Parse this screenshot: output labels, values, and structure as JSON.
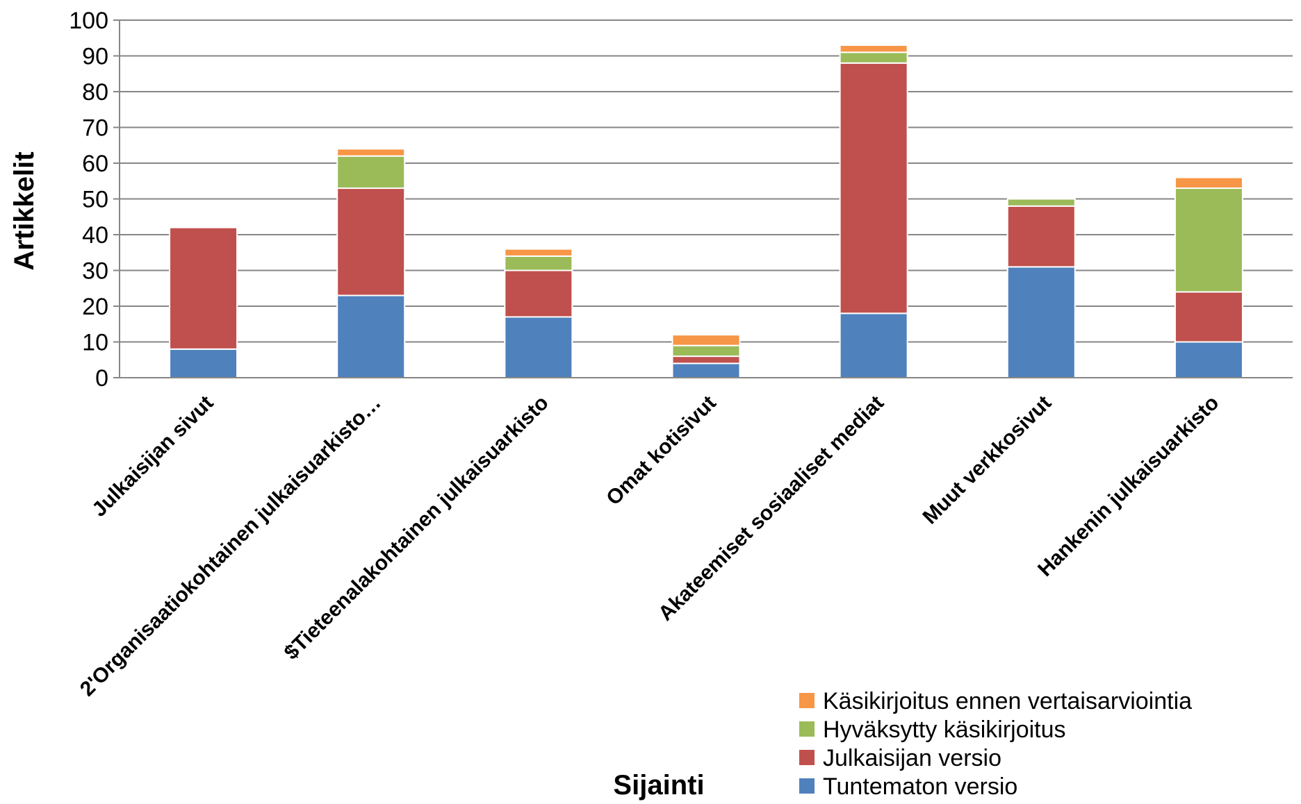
{
  "chart_data": {
    "type": "bar",
    "stacked": true,
    "categories": [
      "Julkaisijan sivut",
      "2'Organisaatiokohtainen julkaisuarkisto…",
      "$Tieteenalakohtainen julkaisuarkisto",
      "Omat kotisivut",
      "Akateemiset sosiaaliset mediat",
      "Muut verkkosivut",
      "Hankenin julkaisuarkisto"
    ],
    "series": [
      {
        "name": "Tuntematon versio",
        "color": "#4F81BD",
        "values": [
          8,
          23,
          17,
          4,
          18,
          31,
          10
        ]
      },
      {
        "name": "Julkaisijan versio",
        "color": "#C0504D",
        "values": [
          34,
          30,
          13,
          2,
          70,
          17,
          14
        ]
      },
      {
        "name": "Hyväksytty käsikirjoitus",
        "color": "#9BBB59",
        "values": [
          0,
          9,
          4,
          3,
          3,
          2,
          29
        ]
      },
      {
        "name": "Käsikirjoitus ennen vertaisarviointia",
        "color": "#F79646",
        "values": [
          0,
          2,
          2,
          3,
          2,
          0,
          3
        ]
      }
    ],
    "title": "",
    "xlabel": "Sijainti",
    "ylabel": "Artikkelit",
    "ylim": [
      0,
      100
    ],
    "yticks": [
      0,
      10,
      20,
      30,
      40,
      50,
      60,
      70,
      80,
      90,
      100
    ],
    "grid": true,
    "legend_position": "bottom-right",
    "legend_order": [
      "Käsikirjoitus ennen vertaisarviointia",
      "Hyväksytty käsikirjoitus",
      "Julkaisijan versio",
      "Tuntematon versio"
    ]
  }
}
